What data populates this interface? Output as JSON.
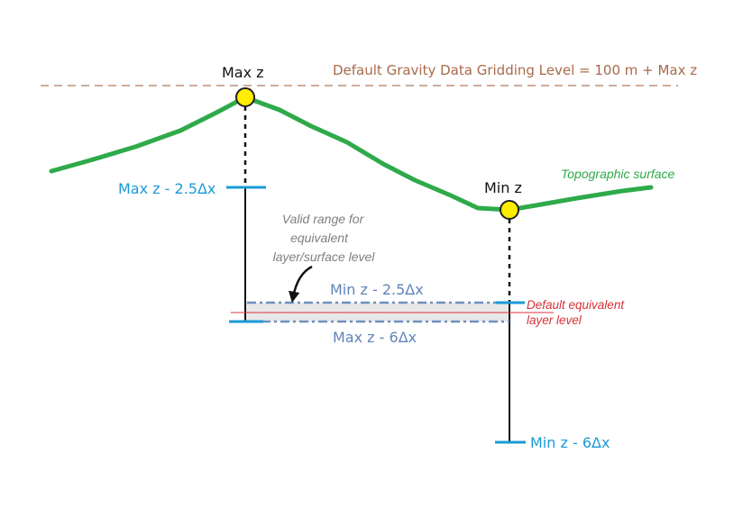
{
  "labels": {
    "max_z": "Max z",
    "min_z": "Min z",
    "gridding_level": "Default Gravity Data Gridding Level = 100 m + Max z",
    "topo_surface": "Topographic surface",
    "max_z_minus_25": "Max z  - 2.5Δx",
    "valid_range_line1": "Valid range for",
    "valid_range_line2": "equivalent",
    "valid_range_line3": "layer/surface level",
    "min_z_minus_25": "Min z  - 2.5Δx",
    "max_z_minus_6": "Max z  - 6Δx",
    "default_eq_line1": "Default equivalent",
    "default_eq_line2": "layer level",
    "min_z_minus_6": "Min z  - 6Δx"
  },
  "colors": {
    "topography": "#2eaa4a",
    "gridding_line": "#b07a5a",
    "gridding_text": "#a86a4a",
    "level_tick": "#1a9ad6",
    "range_dash": "#6f8fbf",
    "range_text": "#5f84b8",
    "range_fill": "#e8e8e8",
    "default_line": "#e0303a",
    "default_text": "#d8303a",
    "valid_range_text": "#7f7f7f",
    "point_fill": "#ffee00",
    "point_stroke": "#222222"
  }
}
